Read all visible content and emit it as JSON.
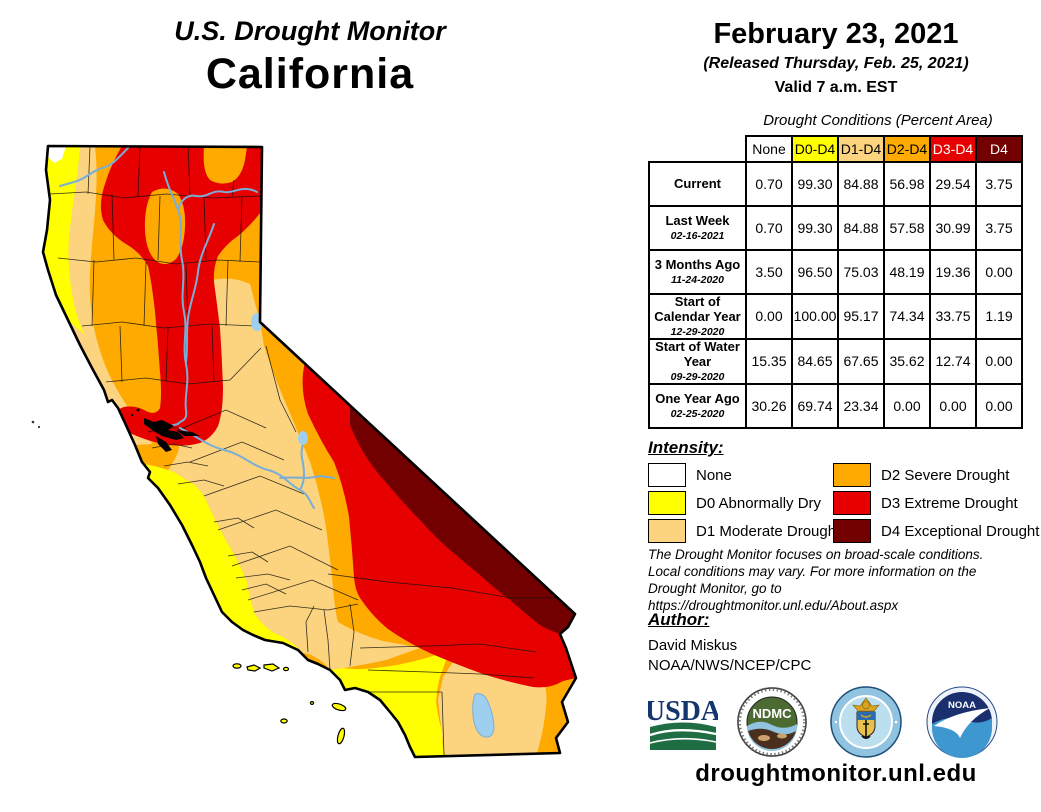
{
  "title": {
    "line1": "U.S. Drought Monitor",
    "line2": "California"
  },
  "date_block": {
    "date": "February 23, 2021",
    "released": "(Released Thursday, Feb. 25, 2021)",
    "valid": "Valid 7 a.m. EST"
  },
  "table": {
    "caption": "Drought Conditions (Percent Area)",
    "columns": [
      "None",
      "D0-D4",
      "D1-D4",
      "D2-D4",
      "D3-D4",
      "D4"
    ],
    "column_colors": [
      "#FFFFFF",
      "#FFFF00",
      "#FCD37F",
      "#FFAA00",
      "#E60000",
      "#730000"
    ],
    "column_text_colors": [
      "#000000",
      "#000000",
      "#000000",
      "#000000",
      "#FFFFFF",
      "#FFFFFF"
    ],
    "rows": [
      {
        "label": "Current",
        "sublabel": "",
        "values": [
          "0.70",
          "99.30",
          "84.88",
          "56.98",
          "29.54",
          "3.75"
        ]
      },
      {
        "label": "Last Week",
        "sublabel": "02-16-2021",
        "values": [
          "0.70",
          "99.30",
          "84.88",
          "57.58",
          "30.99",
          "3.75"
        ]
      },
      {
        "label": "3 Months Ago",
        "sublabel": "11-24-2020",
        "values": [
          "3.50",
          "96.50",
          "75.03",
          "48.19",
          "19.36",
          "0.00"
        ]
      },
      {
        "label": "Start of Calendar Year",
        "sublabel": "12-29-2020",
        "values": [
          "0.00",
          "100.00",
          "95.17",
          "74.34",
          "33.75",
          "1.19"
        ]
      },
      {
        "label": "Start of Water Year",
        "sublabel": "09-29-2020",
        "values": [
          "15.35",
          "84.65",
          "67.65",
          "35.62",
          "12.74",
          "0.00"
        ]
      },
      {
        "label": "One Year Ago",
        "sublabel": "02-25-2020",
        "values": [
          "30.26",
          "69.74",
          "23.34",
          "0.00",
          "0.00",
          "0.00"
        ]
      }
    ]
  },
  "legend": {
    "heading": "Intensity:",
    "items": [
      {
        "label": "None",
        "color": "#FFFFFF"
      },
      {
        "label": "D0 Abnormally Dry",
        "color": "#FFFF00"
      },
      {
        "label": "D1 Moderate Drought",
        "color": "#FCD37F"
      },
      {
        "label": "D2 Severe Drought",
        "color": "#FFAA00"
      },
      {
        "label": "D3 Extreme Drought",
        "color": "#E60000"
      },
      {
        "label": "D4 Exceptional Drought",
        "color": "#730000"
      }
    ]
  },
  "disclaimer": {
    "line1": "The Drought Monitor focuses on broad-scale conditions.",
    "line2": "Local conditions may vary. For more information on the",
    "line3": "Drought Monitor, go to https://droughtmonitor.unl.edu/About.aspx"
  },
  "author_block": {
    "heading": "Author:",
    "name": "David Miskus",
    "org": "NOAA/NWS/NCEP/CPC"
  },
  "logos": {
    "usda": "USDA",
    "ndmc": "NDMC",
    "noaa": "NOAA"
  },
  "footer": {
    "website": "droughtmonitor.unl.edu"
  },
  "map": {
    "region": "California",
    "colors": {
      "none": "#FFFFFF",
      "d0": "#FFFF00",
      "d1": "#FCD37F",
      "d2": "#FFAA00",
      "d3": "#E60000",
      "d4": "#730000"
    },
    "water_color": "#79aed6"
  }
}
